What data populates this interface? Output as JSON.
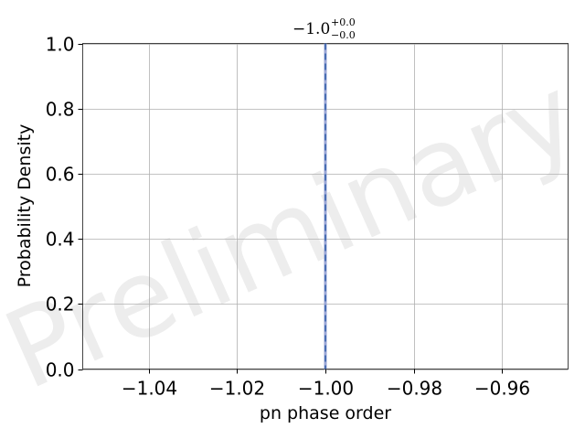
{
  "chart_data": {
    "type": "line",
    "title": {
      "value": "−1.0",
      "upper": "+0.0",
      "lower": "−0.0"
    },
    "xlabel": "pn phase order",
    "ylabel": "Probability Density",
    "xlim": [
      -1.055,
      -0.945
    ],
    "ylim": [
      0,
      1
    ],
    "x_ticks": [
      -1.04,
      -1.02,
      -1.0,
      -0.98,
      -0.96
    ],
    "x_tick_labels": [
      "−1.04",
      "−1.02",
      "−1.00",
      "−0.98",
      "−0.96"
    ],
    "y_ticks": [
      0,
      0.2,
      0.4,
      0.6,
      0.8,
      1.0
    ],
    "y_tick_labels": [
      "0.0",
      "0.2",
      "0.4",
      "0.6",
      "0.8",
      "1.0"
    ],
    "grid": true,
    "vlines": [
      {
        "x": -1.0,
        "style": "solid",
        "color": "#9aa6d6"
      },
      {
        "x": -1.0,
        "style": "dashed",
        "color": "#4a6fb3"
      }
    ],
    "watermark": "Preliminary"
  }
}
